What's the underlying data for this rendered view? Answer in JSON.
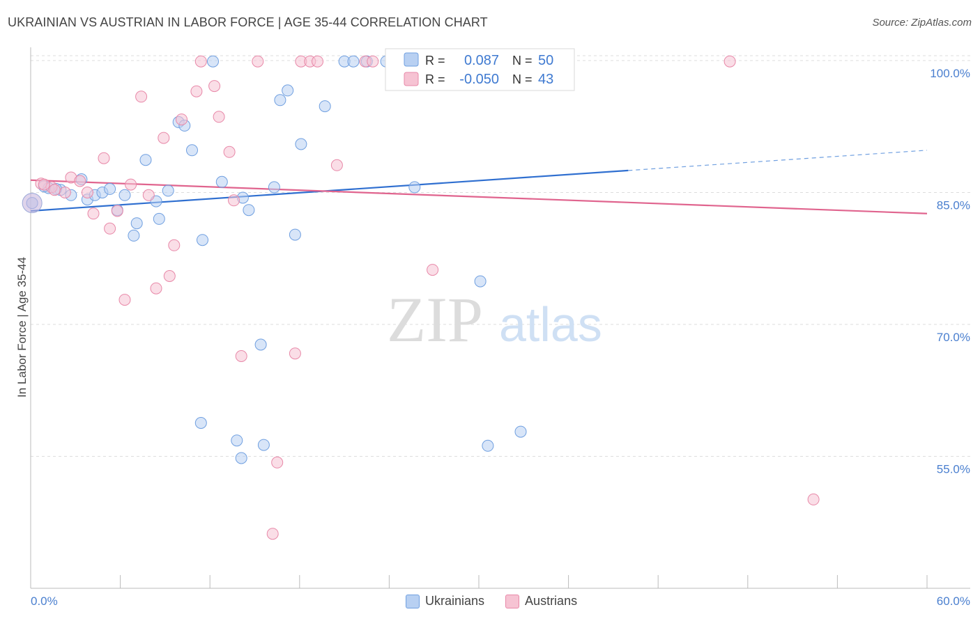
{
  "title": "UKRAINIAN VS AUSTRIAN IN LABOR FORCE | AGE 35-44 CORRELATION CHART",
  "source": "Source: ZipAtlas.com",
  "watermark": {
    "zip": "ZIP",
    "atlas": "atlas"
  },
  "chart_data": {
    "type": "scatter",
    "ylabel": "In Labor Force | Age 35-44",
    "xlim": [
      0,
      60
    ],
    "ylim": [
      40,
      101.5
    ],
    "x_tick_labels": {
      "left": "0.0%",
      "right": "60.0%"
    },
    "y_ticks": [
      {
        "value": 100,
        "label": "100.0%"
      },
      {
        "value": 85,
        "label": "85.0%"
      },
      {
        "value": 70,
        "label": "70.0%"
      },
      {
        "value": 55,
        "label": "55.0%"
      }
    ],
    "grid": true,
    "legend_top": [
      {
        "r_label": "R =",
        "r_value": "0.087",
        "n_label": "N =",
        "n_value": "50"
      },
      {
        "r_label": "R =",
        "r_value": "-0.050",
        "n_label": "N =",
        "n_value": "43"
      }
    ],
    "series": [
      {
        "name": "Ukrainians",
        "color": "#6f9fe0",
        "fill": "#b8d0f2",
        "trend": {
          "x0": 0,
          "y0": 82.9,
          "x1": 40,
          "y1": 87.5,
          "dash_to_x": 60,
          "dash_to_y": 89.8
        },
        "points": [
          [
            0.1,
            83.8
          ],
          [
            1.2,
            85.5
          ],
          [
            2,
            85.3
          ],
          [
            2.7,
            84.7
          ],
          [
            3.4,
            86.5
          ],
          [
            3.8,
            84.2
          ],
          [
            4.3,
            84.7
          ],
          [
            4.8,
            85
          ],
          [
            5.3,
            85.4
          ],
          [
            5.8,
            83
          ],
          [
            6.3,
            84.7
          ],
          [
            7.1,
            81.5
          ],
          [
            7.7,
            88.7
          ],
          [
            6.9,
            80.1
          ],
          [
            8.4,
            84
          ],
          [
            8.6,
            82
          ],
          [
            9.2,
            85.2
          ],
          [
            9.9,
            93
          ],
          [
            10.3,
            92.6
          ],
          [
            10.8,
            89.8
          ],
          [
            11.5,
            79.6
          ],
          [
            12.2,
            99.9
          ],
          [
            12.8,
            86.2
          ],
          [
            13.8,
            56.8
          ],
          [
            14.1,
            54.8
          ],
          [
            14.2,
            84.4
          ],
          [
            14.6,
            83
          ],
          [
            15.4,
            67.7
          ],
          [
            15.6,
            56.3
          ],
          [
            16.3,
            85.6
          ],
          [
            16.7,
            95.5
          ],
          [
            17.2,
            96.6
          ],
          [
            17.7,
            80.2
          ],
          [
            18.1,
            90.5
          ],
          [
            19.7,
            94.8
          ],
          [
            21.0,
            99.9
          ],
          [
            21.6,
            99.9
          ],
          [
            22.5,
            99.9
          ],
          [
            23.8,
            99.9
          ],
          [
            24.5,
            99.9
          ],
          [
            25.7,
            85.6
          ],
          [
            27.2,
            99.9
          ],
          [
            30.1,
            74.9
          ],
          [
            30.6,
            56.2
          ],
          [
            32.2,
            99.9
          ],
          [
            32.8,
            57.8
          ],
          [
            35.7,
            99.9
          ],
          [
            11.4,
            58.8
          ],
          [
            0.9,
            85.7
          ],
          [
            1.7,
            85.4
          ]
        ]
      },
      {
        "name": "Austrians",
        "color": "#e888a8",
        "fill": "#f6c3d3",
        "trend": {
          "x0": 0,
          "y0": 86.4,
          "x1": 60,
          "y1": 82.6
        },
        "points": [
          [
            0.7,
            86
          ],
          [
            1.4,
            85.6
          ],
          [
            2.3,
            85
          ],
          [
            2.7,
            86.7
          ],
          [
            3.3,
            86.3
          ],
          [
            3.8,
            85
          ],
          [
            4.2,
            82.6
          ],
          [
            4.9,
            88.9
          ],
          [
            5.3,
            80.9
          ],
          [
            5.8,
            82.9
          ],
          [
            6.3,
            72.8
          ],
          [
            6.7,
            85.9
          ],
          [
            7.4,
            95.9
          ],
          [
            7.9,
            84.7
          ],
          [
            8.4,
            74.1
          ],
          [
            8.9,
            91.2
          ],
          [
            9.3,
            75.5
          ],
          [
            9.6,
            79
          ],
          [
            10.1,
            93.3
          ],
          [
            11.1,
            96.5
          ],
          [
            11.4,
            99.9
          ],
          [
            12.3,
            97.1
          ],
          [
            12.6,
            93.6
          ],
          [
            13.3,
            89.6
          ],
          [
            13.6,
            84.1
          ],
          [
            14.1,
            66.4
          ],
          [
            15.2,
            99.9
          ],
          [
            16.2,
            46.2
          ],
          [
            16.5,
            54.3
          ],
          [
            17.7,
            66.7
          ],
          [
            18.1,
            99.9
          ],
          [
            18.7,
            99.9
          ],
          [
            19.2,
            99.9
          ],
          [
            20.5,
            88.1
          ],
          [
            22.4,
            99.9
          ],
          [
            22.9,
            99.9
          ],
          [
            26.9,
            76.2
          ],
          [
            27.2,
            99.9
          ],
          [
            32.8,
            99.9
          ],
          [
            46.8,
            99.9
          ],
          [
            52.4,
            50.1
          ],
          [
            1.6,
            85.3
          ],
          [
            0.9,
            85.9
          ]
        ]
      }
    ]
  }
}
